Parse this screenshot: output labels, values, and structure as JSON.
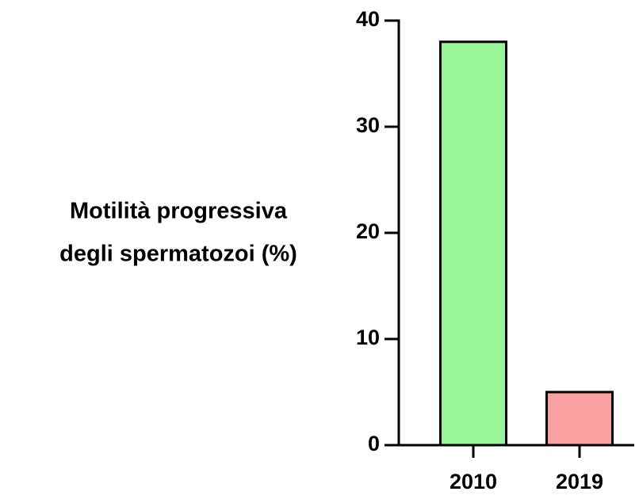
{
  "chart_data": {
    "type": "bar",
    "ylabel": [
      "Motilità progressiva",
      "degli spermatozoi (%)"
    ],
    "categories": [
      "2010",
      "2019"
    ],
    "values": [
      38,
      5
    ],
    "colors": [
      "#98f598",
      "#f9a0a0"
    ],
    "ylim": [
      0,
      40
    ],
    "yticks": [
      0,
      10,
      20,
      30,
      40
    ],
    "grid": false
  }
}
